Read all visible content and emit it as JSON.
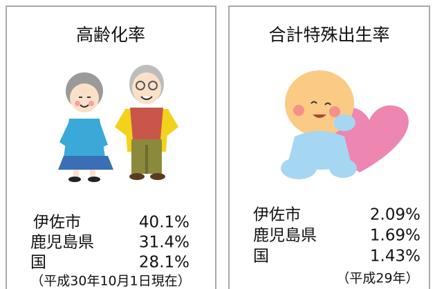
{
  "panels": [
    {
      "title": "高齢化率",
      "rows": [
        {
          "label": "伊佐市",
          "value": "40.1%"
        },
        {
          "label": "鹿児島県",
          "value": "31.4%"
        },
        {
          "label": "国",
          "value": "28.1%"
        }
      ],
      "note": "（平成30年10月1日現在）"
    },
    {
      "title": "合計特殊出生率",
      "rows": [
        {
          "label": "伊佐市",
          "value": "2.09%"
        },
        {
          "label": "鹿児島県",
          "value": "1.69%"
        },
        {
          "label": "国",
          "value": "1.43%"
        }
      ],
      "note": "（平成29年）"
    }
  ]
}
